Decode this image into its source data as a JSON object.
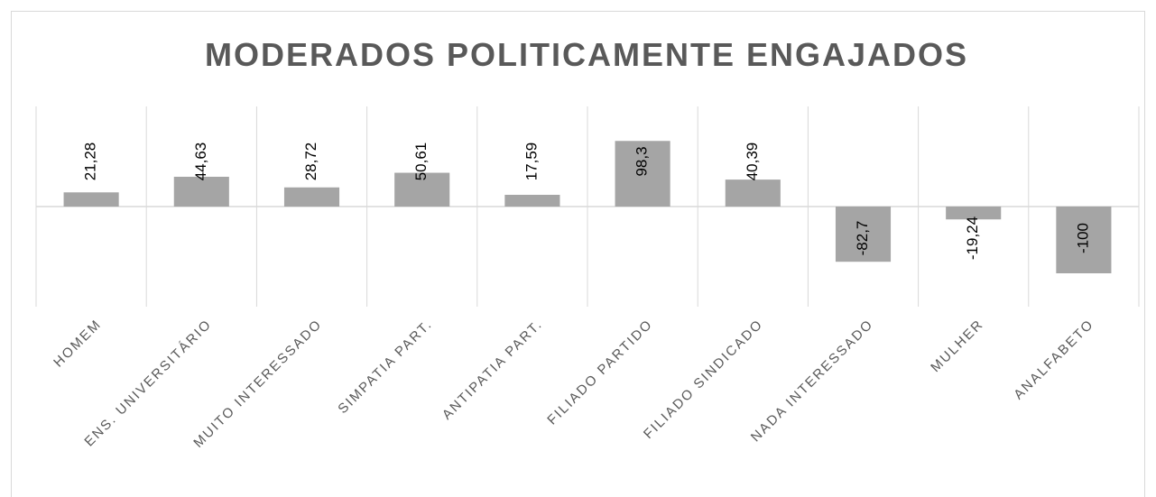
{
  "chart_data": {
    "type": "bar",
    "title": "MODERADOS POLITICAMENTE ENGAJADOS",
    "categories": [
      "HOMEM",
      "ENS. UNIVERSITÁRIO",
      "MUITO INTERESSADO",
      "SIMPATIA PART.",
      "ANTIPATIA PART.",
      "FILIADO PARTIDO",
      "FILIADO SINDICADO",
      "NADA INTERESSADO",
      "MULHER",
      "ANALFABETO"
    ],
    "values": [
      21.28,
      44.63,
      28.72,
      50.61,
      17.59,
      98.3,
      40.39,
      -82.7,
      -19.24,
      -100
    ],
    "value_labels": [
      "21,28",
      "44,63",
      "28,72",
      "50,61",
      "17,59",
      "98,3",
      "40,39",
      "-82,7",
      "-19,24",
      "-100"
    ],
    "color": "#a5a5a5",
    "ylim": [
      -150,
      150
    ]
  }
}
